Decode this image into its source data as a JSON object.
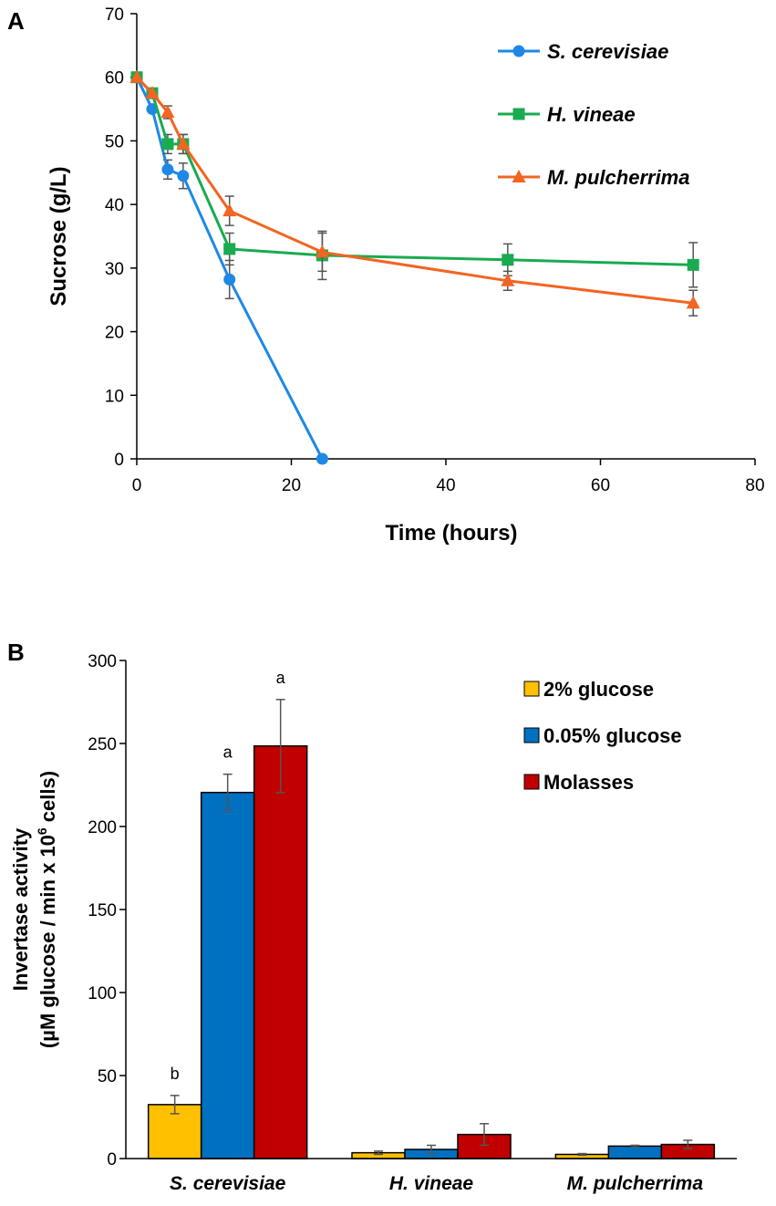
{
  "chart_data": [
    {
      "panel": "A",
      "type": "line",
      "xlabel": "Time (hours)",
      "ylabel": "Sucrose (g/L)",
      "xlim": [
        0,
        80
      ],
      "ylim": [
        0,
        70
      ],
      "xticks": [
        0,
        20,
        40,
        60,
        80
      ],
      "yticks": [
        0,
        10,
        20,
        30,
        40,
        50,
        60,
        70
      ],
      "grid": false,
      "legend": "top-right",
      "series": [
        {
          "name": "S. cerevisiae",
          "color": "#1e88e5",
          "marker": "circle",
          "x": [
            0,
            2,
            4,
            6,
            12,
            24
          ],
          "y": [
            60,
            55,
            45.5,
            44.5,
            28.2,
            0
          ],
          "err": [
            0,
            0,
            1.5,
            2,
            3,
            0
          ]
        },
        {
          "name": "H. vineae",
          "color": "#1aaa50",
          "marker": "square",
          "x": [
            0,
            2,
            4,
            6,
            12,
            24,
            48,
            72
          ],
          "y": [
            60,
            57.5,
            49.5,
            49.5,
            33,
            32,
            31.3,
            30.5
          ],
          "err": [
            0,
            0,
            1.5,
            1.5,
            2.5,
            3.8,
            2.5,
            3.5
          ]
        },
        {
          "name": "M. pulcherrima",
          "color": "#f26522",
          "marker": "triangle",
          "x": [
            0,
            2,
            4,
            6,
            12,
            24,
            48,
            72
          ],
          "y": [
            60,
            57.5,
            54.5,
            49.5,
            39,
            32.5,
            28,
            24.5
          ],
          "err": [
            0,
            0,
            1,
            1.5,
            2.3,
            3,
            1.5,
            2
          ]
        }
      ]
    },
    {
      "panel": "B",
      "type": "bar",
      "ylabel_line1": "Invertase activity",
      "ylabel_line2_prefix": "(µM glucose / min x 10",
      "ylabel_line2_sup": "6",
      "ylabel_line2_suffix": " cells)",
      "ylim": [
        0,
        300
      ],
      "yticks": [
        0,
        50,
        100,
        150,
        200,
        250,
        300
      ],
      "grid": false,
      "legend": "top-right",
      "categories": [
        "S. cerevisiae",
        "H. vineae",
        "M. pulcherrima"
      ],
      "series": [
        {
          "name": "2% glucose",
          "color": "#ffc000",
          "values": [
            32.5,
            3.5,
            2.5
          ],
          "err": [
            5.5,
            1,
            0.5
          ],
          "sig": [
            "b",
            "",
            ""
          ]
        },
        {
          "name": "0.05% glucose",
          "color": "#0070c0",
          "values": [
            220.5,
            5.5,
            7.5
          ],
          "err": [
            11,
            2.5,
            0.5
          ],
          "sig": [
            "a",
            "",
            ""
          ]
        },
        {
          "name": "Molasses",
          "color": "#c00000",
          "values": [
            248.5,
            14.5,
            8.5
          ],
          "err": [
            28,
            6.5,
            2.5
          ],
          "sig": [
            "a",
            "",
            ""
          ]
        }
      ]
    }
  ]
}
